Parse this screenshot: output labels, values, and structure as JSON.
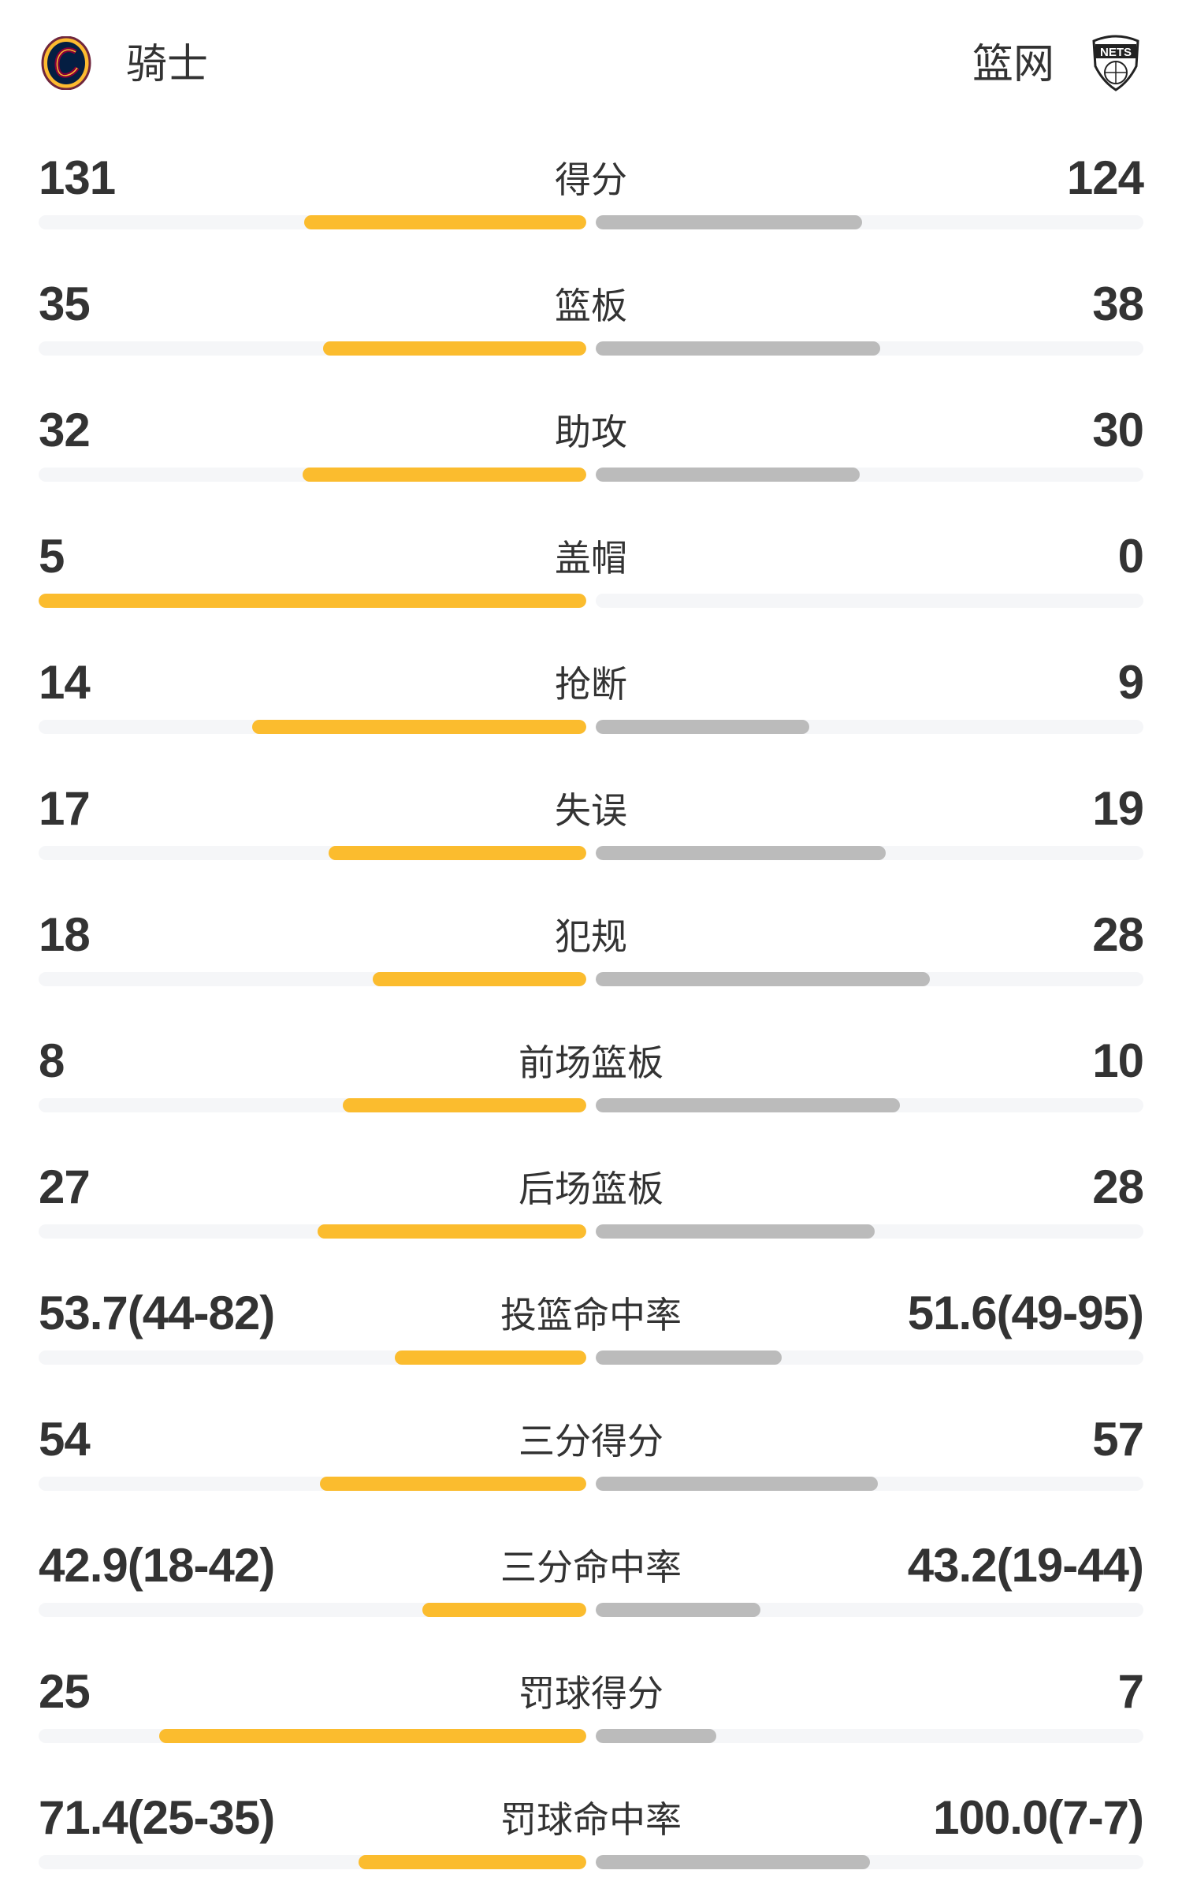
{
  "colors": {
    "home": "#FBBC2E",
    "away": "#BBBBBB",
    "track": "#F5F6F8",
    "text": "#333333"
  },
  "header": {
    "home": {
      "name": "骑士",
      "logo_icon": "cavaliers-logo"
    },
    "away": {
      "name": "篮网",
      "logo_icon": "nets-logo",
      "logo_text": "NETS"
    }
  },
  "stats": [
    {
      "label": "得分",
      "home": "131",
      "away": "124",
      "home_fill": 0.515,
      "away_fill": 0.487
    },
    {
      "label": "篮板",
      "home": "35",
      "away": "38",
      "home_fill": 0.48,
      "away_fill": 0.52
    },
    {
      "label": "助攻",
      "home": "32",
      "away": "30",
      "home_fill": 0.518,
      "away_fill": 0.482
    },
    {
      "label": "盖帽",
      "home": "5",
      "away": "0",
      "home_fill": 1.0,
      "away_fill": 0
    },
    {
      "label": "抢断",
      "home": "14",
      "away": "9",
      "home_fill": 0.61,
      "away_fill": 0.39
    },
    {
      "label": "失误",
      "home": "17",
      "away": "19",
      "home_fill": 0.471,
      "away_fill": 0.529
    },
    {
      "label": "犯规",
      "home": "18",
      "away": "28",
      "home_fill": 0.39,
      "away_fill": 0.61
    },
    {
      "label": "前场篮板",
      "home": "8",
      "away": "10",
      "home_fill": 0.445,
      "away_fill": 0.555
    },
    {
      "label": "后场篮板",
      "home": "27",
      "away": "28",
      "home_fill": 0.49,
      "away_fill": 0.509
    },
    {
      "label": "投篮命中率",
      "home": "53.7(44-82)",
      "away": "51.6(49-95)",
      "home_fill": 0.35,
      "away_fill": 0.34
    },
    {
      "label": "三分得分",
      "home": "54",
      "away": "57",
      "home_fill": 0.487,
      "away_fill": 0.515
    },
    {
      "label": "三分命中率",
      "home": "42.9(18-42)",
      "away": "43.2(19-44)",
      "home_fill": 0.3,
      "away_fill": 0.3
    },
    {
      "label": "罚球得分",
      "home": "25",
      "away": "7",
      "home_fill": 0.78,
      "away_fill": 0.22
    },
    {
      "label": "罚球命中率",
      "home": "71.4(25-35)",
      "away": "100.0(7-7)",
      "home_fill": 0.416,
      "away_fill": 0.5
    }
  ]
}
